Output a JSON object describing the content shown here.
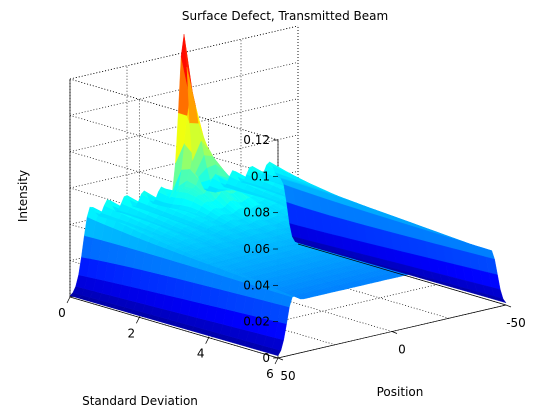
{
  "chart_data": {
    "type": "surface",
    "title": "Surface Defect, Transmitted Beam",
    "xlabel": "Position",
    "ylabel": "Standard Deviation",
    "zlabel": "Intensity",
    "x_ticks": [
      "-50",
      "0",
      "50"
    ],
    "y_ticks": [
      "0",
      "2",
      "4",
      "6"
    ],
    "z_ticks": [
      "0",
      "0.02",
      "0.04",
      "0.06",
      "0.08",
      "0.1",
      "0.12"
    ],
    "xlim": [
      -50,
      50
    ],
    "ylim": [
      0,
      6
    ],
    "zlim": [
      0,
      0.12
    ],
    "grid": true,
    "colormap": "jet",
    "colors": [
      "#00008f",
      "#0000ff",
      "#0080ff",
      "#00ffff",
      "#80ff80",
      "#ffff00",
      "#ff8000",
      "#ff0000",
      "#800000"
    ],
    "features": {
      "peak_intensity": 0.13,
      "peak_position": 0,
      "peak_std_dev": 0,
      "ridge_intensity": 0.045,
      "ridge_position_edges": [
        -45,
        45
      ]
    }
  }
}
